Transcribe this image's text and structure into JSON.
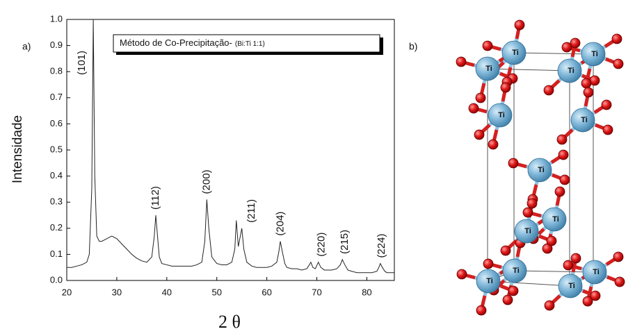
{
  "chart_data": {
    "type": "line",
    "panel_labels": [
      "a)",
      "b)"
    ],
    "x_label": "2 θ",
    "y_label": "Intensidade",
    "legend_text": "Método de Co-Precipitação-",
    "legend_subtext": "(Bi:Ti 1:1)",
    "xlim": [
      20,
      85.5
    ],
    "ylim": [
      0,
      1
    ],
    "xticks": [
      20,
      30,
      40,
      50,
      60,
      70,
      80
    ],
    "yticks": [
      {
        "value": 0,
        "label": "0.0"
      },
      0.1,
      0.2,
      0.3,
      0.4,
      0.5,
      0.6,
      0.7,
      0.8,
      0.9,
      {
        "value": 1,
        "label": "1.0"
      }
    ],
    "color": "#222222",
    "x": [
      20,
      21,
      22,
      23,
      24,
      24.5,
      25,
      25.3,
      25.6,
      26,
      26.5,
      27,
      28,
      29,
      30,
      31,
      32,
      33,
      34,
      35,
      36,
      37,
      37.5,
      37.8,
      38.1,
      38.5,
      39,
      40,
      41,
      42,
      43,
      44,
      45,
      46,
      47,
      47.6,
      48,
      48.4,
      49,
      50,
      51,
      52,
      53,
      53.6,
      53.9,
      54.3,
      54.7,
      55,
      55.4,
      56,
      57,
      58,
      59,
      60,
      61,
      62,
      62.4,
      62.7,
      63.1,
      63.6,
      64,
      65,
      66,
      67,
      68,
      68.5,
      68.8,
      69.2,
      69.7,
      70.3,
      70.8,
      71.5,
      72,
      73,
      74,
      74.7,
      75.1,
      75.6,
      76.2,
      77,
      78,
      79,
      80,
      81,
      82,
      82.4,
      82.7,
      83.1,
      83.6,
      84,
      85,
      85.5
    ],
    "values": [
      0.05,
      0.05,
      0.055,
      0.06,
      0.07,
      0.1,
      0.35,
      1.0,
      0.4,
      0.17,
      0.15,
      0.15,
      0.16,
      0.17,
      0.16,
      0.14,
      0.12,
      0.1,
      0.085,
      0.075,
      0.07,
      0.09,
      0.17,
      0.25,
      0.18,
      0.09,
      0.065,
      0.06,
      0.055,
      0.055,
      0.055,
      0.055,
      0.055,
      0.06,
      0.07,
      0.15,
      0.31,
      0.2,
      0.09,
      0.065,
      0.06,
      0.06,
      0.07,
      0.12,
      0.23,
      0.13,
      0.17,
      0.2,
      0.12,
      0.07,
      0.055,
      0.05,
      0.05,
      0.05,
      0.055,
      0.07,
      0.11,
      0.15,
      0.11,
      0.065,
      0.05,
      0.045,
      0.045,
      0.04,
      0.045,
      0.06,
      0.07,
      0.05,
      0.045,
      0.07,
      0.05,
      0.04,
      0.04,
      0.04,
      0.045,
      0.06,
      0.08,
      0.06,
      0.04,
      0.035,
      0.03,
      0.03,
      0.03,
      0.03,
      0.035,
      0.05,
      0.065,
      0.05,
      0.035,
      0.03,
      0.03,
      0.03
    ],
    "annotations": [
      {
        "text": "(101)",
        "x": 25.3
      },
      {
        "text": "(112)",
        "x": 37.8
      },
      {
        "text": "(200)",
        "x": 48.0
      },
      {
        "text": "(211)",
        "x": 57.0
      },
      {
        "text": "(204)",
        "x": 62.8
      },
      {
        "text": "(220)",
        "x": 71.0
      },
      {
        "text": "(215)",
        "x": 75.6
      },
      {
        "text": "(224)",
        "x": 83.0
      }
    ],
    "structure_atom_label": "Ti"
  }
}
